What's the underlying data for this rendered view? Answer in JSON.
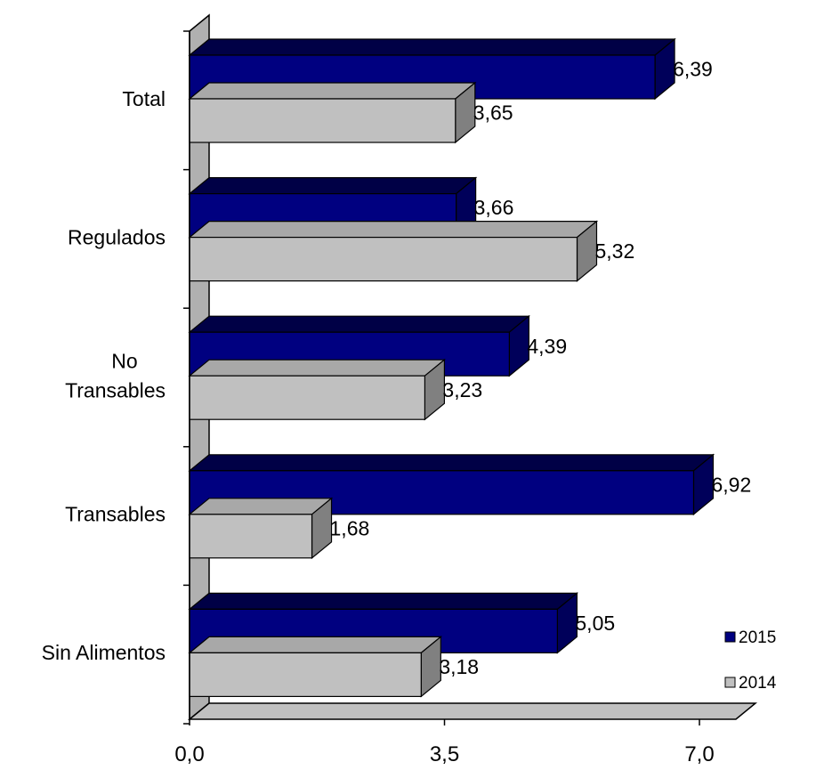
{
  "chart_data": {
    "type": "bar",
    "orientation": "horizontal",
    "three_d": true,
    "categories": [
      "Total",
      "Regulados",
      "No Transables",
      "Transables",
      "Sin Alimentos"
    ],
    "category_lines": [
      [
        "Total"
      ],
      [
        "Regulados"
      ],
      [
        "No",
        "Transables"
      ],
      [
        "Transables"
      ],
      [
        "Sin Alimentos"
      ]
    ],
    "series": [
      {
        "name": "2015",
        "color": "#000080",
        "values": [
          6.39,
          3.66,
          4.39,
          6.92,
          5.05
        ],
        "labels": [
          "6,39",
          "3,66",
          "4,39",
          "6,92",
          "5,05"
        ]
      },
      {
        "name": "2014",
        "color": "#c0c0c0",
        "values": [
          3.65,
          5.32,
          3.23,
          1.68,
          3.18
        ],
        "labels": [
          "3,65",
          "5,32",
          "3,23",
          "1,68",
          "3,18"
        ]
      }
    ],
    "xlim": [
      0,
      7.5
    ],
    "x_ticks": [
      0,
      3.5,
      7.0
    ],
    "x_tick_labels": [
      "0,0",
      "3,5",
      "7,0"
    ],
    "grid": false,
    "legend_position": "bottom-right",
    "title": "",
    "xlabel": "",
    "ylabel": ""
  }
}
